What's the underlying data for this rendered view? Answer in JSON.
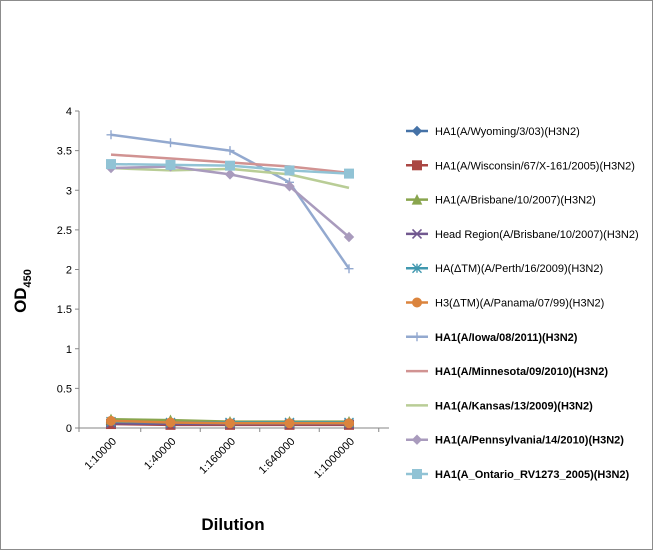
{
  "chart_data": {
    "type": "line",
    "xlabel": "Dilution",
    "ylabel": "OD",
    "ylabel_sub": "450",
    "categories": [
      "1:10000",
      "1:40000",
      "1:160000",
      "1:640000",
      "1:1000000"
    ],
    "ylim": [
      0,
      4
    ],
    "yticks": [
      "0",
      "0.5",
      "1",
      "1.5",
      "2",
      "2.5",
      "3",
      "3.5",
      "4"
    ],
    "grid": false,
    "legend_position": "right",
    "series": [
      {
        "name": "HA1(A/Wyoming/3/03)(H3N2)",
        "color": "#4572A7",
        "marker": "diamond",
        "bold": false,
        "values": [
          0.07,
          0.06,
          0.06,
          0.06,
          0.06
        ]
      },
      {
        "name": "HA1(A/Wisconsin/67/X-161/2005)(H3N2)",
        "color": "#AA4643",
        "marker": "square",
        "bold": false,
        "values": [
          0.05,
          0.04,
          0.04,
          0.04,
          0.04
        ]
      },
      {
        "name": "HA1(A/Brisbane/10/2007)(H3N2)",
        "color": "#89A54E",
        "marker": "triangle",
        "bold": false,
        "values": [
          0.11,
          0.1,
          0.08,
          0.08,
          0.08
        ]
      },
      {
        "name": "Head Region(A/Brisbane/10/2007)(H3N2)",
        "color": "#71588F",
        "marker": "x",
        "bold": false,
        "values": [
          0.06,
          0.05,
          0.05,
          0.05,
          0.05
        ]
      },
      {
        "name": "HA(ΔTM)(A/Perth/16/2009)(H3N2)",
        "color": "#4198AF",
        "marker": "star",
        "bold": false,
        "values": [
          0.08,
          0.07,
          0.07,
          0.07,
          0.07
        ]
      },
      {
        "name": "H3(ΔTM)(A/Panama/07/99)(H3N2)",
        "color": "#DB843D",
        "marker": "circle",
        "bold": false,
        "values": [
          0.09,
          0.07,
          0.06,
          0.06,
          0.06
        ]
      },
      {
        "name": "HA1(A/Iowa/08/2011)(H3N2)",
        "color": "#93A9CF",
        "marker": "plus",
        "bold": true,
        "values": [
          3.7,
          3.6,
          3.5,
          3.1,
          2.01
        ]
      },
      {
        "name": "HA1(A/Minnesota/09/2010)(H3N2)",
        "color": "#D19392",
        "marker": "none",
        "bold": true,
        "values": [
          3.45,
          3.4,
          3.35,
          3.3,
          3.22
        ]
      },
      {
        "name": "HA1(A/Kansas/13/2009)(H3N2)",
        "color": "#B9CD96",
        "marker": "none",
        "bold": true,
        "values": [
          3.28,
          3.25,
          3.27,
          3.2,
          3.03
        ]
      },
      {
        "name": "HA1(A/Pennsylvania/14/2010)(H3N2)",
        "color": "#A99BBD",
        "marker": "diamond",
        "bold": true,
        "values": [
          3.28,
          3.3,
          3.2,
          3.05,
          2.41
        ]
      },
      {
        "name": "HA1(A_Ontario_RV1273_2005)(H3N2)",
        "color": "#91C3D5",
        "marker": "square",
        "bold": true,
        "values": [
          3.33,
          3.32,
          3.31,
          3.25,
          3.21
        ]
      }
    ]
  }
}
